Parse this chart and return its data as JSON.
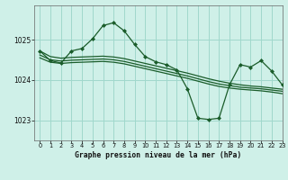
{
  "title": "Graphe pression niveau de la mer (hPa)",
  "bg_color": "#cff0e8",
  "grid_color": "#a0d8cc",
  "line_color": "#1a5c2a",
  "xlim": [
    -0.5,
    23
  ],
  "ylim": [
    1022.5,
    1025.85
  ],
  "yticks": [
    1023,
    1024,
    1025
  ],
  "xticks": [
    0,
    1,
    2,
    3,
    4,
    5,
    6,
    7,
    8,
    9,
    10,
    11,
    12,
    13,
    14,
    15,
    16,
    17,
    18,
    19,
    20,
    21,
    22,
    23
  ],
  "main_x": [
    0,
    1,
    2,
    3,
    4,
    5,
    6,
    7,
    8,
    9,
    10,
    11,
    12,
    13,
    14,
    15,
    16,
    17,
    18,
    19,
    20,
    21,
    22,
    23
  ],
  "main_y": [
    1024.72,
    1024.48,
    1024.42,
    1024.72,
    1024.78,
    1025.02,
    1025.35,
    1025.42,
    1025.22,
    1024.88,
    1024.58,
    1024.45,
    1024.38,
    1024.25,
    1023.78,
    1023.05,
    1023.02,
    1023.05,
    1023.88,
    1024.38,
    1024.32,
    1024.48,
    1024.22,
    1023.88
  ],
  "line2_x": [
    0,
    1,
    2,
    3,
    4,
    5,
    6,
    7,
    8,
    9,
    10,
    11,
    12,
    13,
    14,
    15,
    16,
    17,
    18,
    19,
    20,
    21,
    22,
    23
  ],
  "line2_y": [
    1024.72,
    1024.58,
    1024.54,
    1024.56,
    1024.57,
    1024.58,
    1024.59,
    1024.57,
    1024.53,
    1024.47,
    1024.41,
    1024.35,
    1024.29,
    1024.23,
    1024.17,
    1024.1,
    1024.03,
    1023.97,
    1023.92,
    1023.88,
    1023.85,
    1023.83,
    1023.8,
    1023.77
  ],
  "line3_x": [
    0,
    1,
    2,
    3,
    4,
    5,
    6,
    7,
    8,
    9,
    10,
    11,
    12,
    13,
    14,
    15,
    16,
    17,
    18,
    19,
    20,
    21,
    22,
    23
  ],
  "line3_y": [
    1024.62,
    1024.5,
    1024.47,
    1024.49,
    1024.5,
    1024.51,
    1024.52,
    1024.5,
    1024.46,
    1024.4,
    1024.34,
    1024.28,
    1024.22,
    1024.16,
    1024.1,
    1024.03,
    1023.96,
    1023.9,
    1023.86,
    1023.82,
    1023.8,
    1023.78,
    1023.75,
    1023.72
  ],
  "line4_x": [
    0,
    1,
    2,
    3,
    4,
    5,
    6,
    7,
    8,
    9,
    10,
    11,
    12,
    13,
    14,
    15,
    16,
    17,
    18,
    19,
    20,
    21,
    22,
    23
  ],
  "line4_y": [
    1024.55,
    1024.44,
    1024.41,
    1024.43,
    1024.44,
    1024.45,
    1024.46,
    1024.44,
    1024.4,
    1024.34,
    1024.28,
    1024.22,
    1024.16,
    1024.1,
    1024.04,
    1023.97,
    1023.9,
    1023.84,
    1023.8,
    1023.77,
    1023.75,
    1023.73,
    1023.7,
    1023.66
  ]
}
